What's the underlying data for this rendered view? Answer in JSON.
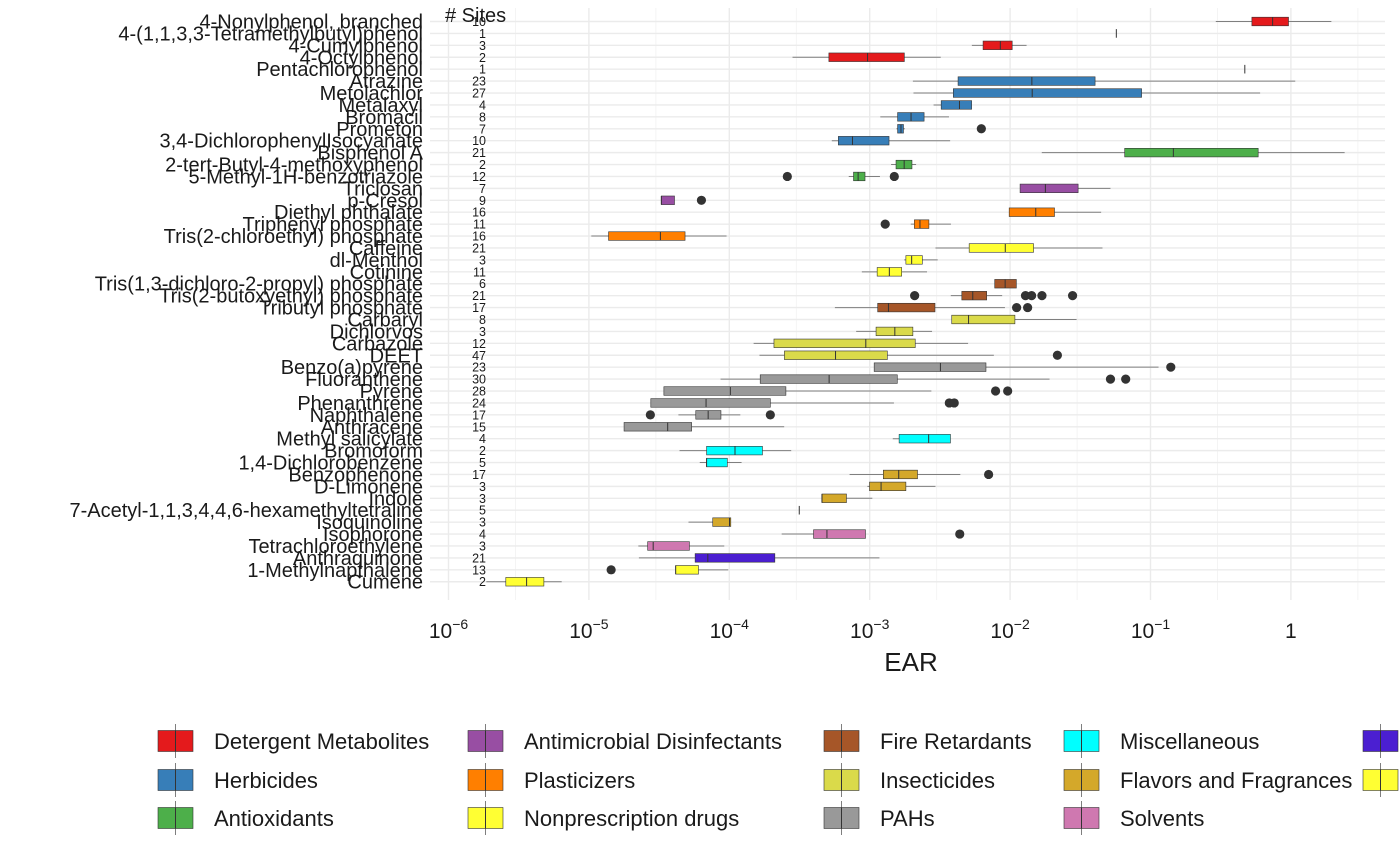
{
  "chart_data": {
    "type": "boxplot",
    "orientation": "horizontal",
    "xlabel": "EAR",
    "ylabel": "",
    "sites_header": "# Sites",
    "x_scale": "log10",
    "xlim": [
      6e-07,
      5
    ],
    "x_ticks": [
      {
        "value": 1e-06,
        "base": "10",
        "exp": "−6"
      },
      {
        "value": 1e-05,
        "base": "10",
        "exp": "−5"
      },
      {
        "value": 0.0001,
        "base": "10",
        "exp": "−4"
      },
      {
        "value": 0.001,
        "base": "10",
        "exp": "−3"
      },
      {
        "value": 0.01,
        "base": "10",
        "exp": "−2"
      },
      {
        "value": 0.1,
        "base": "10",
        "exp": "−1"
      },
      {
        "value": 1,
        "base": "1",
        "exp": ""
      }
    ],
    "grid": true,
    "legend_position": "bottom",
    "classes": [
      {
        "name": "Detergent Metabolites",
        "color": "#E41A1C"
      },
      {
        "name": "Antimicrobial Disinfectants",
        "color": "#984EA3"
      },
      {
        "name": "Fire Retardants",
        "color": "#A65628"
      },
      {
        "name": "Miscellaneous",
        "color": "#00FFFF"
      },
      {
        "name": "",
        "color": "#4B1FD1"
      },
      {
        "name": "Herbicides",
        "color": "#377EB8"
      },
      {
        "name": "Plasticizers",
        "color": "#FF7F00"
      },
      {
        "name": "Insecticides",
        "color": "#DADA4A"
      },
      {
        "name": "Flavors and Fragrances",
        "color": "#D4A82A"
      },
      {
        "name": "",
        "color": "#FFFF33"
      },
      {
        "name": "Antioxidants",
        "color": "#4DAF4A"
      },
      {
        "name": "Nonprescription drugs",
        "color": "#FFFF33"
      },
      {
        "name": "PAHs",
        "color": "#999999"
      },
      {
        "name": "Solvents",
        "color": "#CF78B0"
      }
    ],
    "chemicals": [
      {
        "name": "4-Nonylphenol, branched",
        "sites": "10",
        "color": "#E41A1C",
        "min": 0.2918,
        "q1": 0.5275,
        "median": 0.7409,
        "q3": 0.9616,
        "max": 1.942,
        "outliers": []
      },
      {
        "name": "4-(1,1,3,3-Tetramethylbutyl)phenol",
        "sites": "1",
        "color": "#E41A1C",
        "min": 0.0571,
        "q1": 0.0571,
        "median": 0.0571,
        "q3": 0.0571,
        "max": 0.0571,
        "outliers": []
      },
      {
        "name": "4-Cumylphenol",
        "sites": "3",
        "color": "#E41A1C",
        "min": 0.00534,
        "q1": 0.00642,
        "median": 0.00852,
        "q3": 0.01035,
        "max": 0.0131,
        "outliers": []
      },
      {
        "name": "4-Octylphenol",
        "sites": "2",
        "color": "#E41A1C",
        "min": 0.000282,
        "q1": 0.000512,
        "median": 0.000965,
        "q3": 0.001765,
        "max": 0.003205,
        "outliers": []
      },
      {
        "name": "Pentachlorophenol",
        "sites": "1",
        "color": "#E41A1C",
        "min": 0.4696,
        "q1": 0.4696,
        "median": 0.4696,
        "q3": 0.4696,
        "max": 0.4696,
        "outliers": []
      },
      {
        "name": "Atrazine",
        "sites": "23",
        "color": "#377EB8",
        "min": 0.00203,
        "q1": 0.00426,
        "median": 0.01429,
        "q3": 0.0403,
        "max": 1.074,
        "outliers": []
      },
      {
        "name": "Metolachlor",
        "sites": "27",
        "color": "#377EB8",
        "min": 0.00205,
        "q1": 0.00394,
        "median": 0.01437,
        "q3": 0.0864,
        "max": 0.6037,
        "outliers": []
      },
      {
        "name": "Metalaxyl",
        "sites": "4",
        "color": "#377EB8",
        "min": 0.00285,
        "q1": 0.00323,
        "median": 0.00436,
        "q3": 0.00532,
        "max": 0.00532,
        "outliers": []
      },
      {
        "name": "Bromacil",
        "sites": "8",
        "color": "#377EB8",
        "min": 0.00119,
        "q1": 0.00158,
        "median": 0.00197,
        "q3": 0.00244,
        "max": 0.00367,
        "outliers": []
      },
      {
        "name": "Prometon",
        "sites": "7",
        "color": "#377EB8",
        "min": 0.00155,
        "q1": 0.00158,
        "median": 0.00167,
        "q3": 0.00174,
        "max": 0.00178,
        "outliers": [
          0.00624
        ]
      },
      {
        "name": "3,4-DichlorophenylIsocyanate",
        "sites": "10",
        "color": "#377EB8",
        "min": 0.000537,
        "q1": 0.000598,
        "median": 0.000754,
        "q3": 0.001373,
        "max": 0.00374,
        "outliers": []
      },
      {
        "name": "Bisphenol A",
        "sites": "21",
        "color": "#4DAF4A",
        "min": 0.01681,
        "q1": 0.0655,
        "median": 0.1455,
        "q3": 0.5847,
        "max": 2.414,
        "outliers": []
      },
      {
        "name": "2-tert-Butyl-4-methoxyphenol",
        "sites": "2",
        "color": "#4DAF4A",
        "min": 0.00142,
        "q1": 0.00154,
        "median": 0.00176,
        "q3": 0.002,
        "max": 0.00214,
        "outliers": []
      },
      {
        "name": "5-Methyl-1H-benzotriazole",
        "sites": "12",
        "color": "#4DAF4A",
        "min": 0.000709,
        "q1": 0.000767,
        "median": 0.000827,
        "q3": 0.000926,
        "max": 0.001183,
        "outliers": [
          0.000259,
          0.001497
        ]
      },
      {
        "name": "Triclosan",
        "sites": "7",
        "color": "#984EA3",
        "min": 0.01178,
        "q1": 0.01178,
        "median": 0.01784,
        "q3": 0.03051,
        "max": 0.05187,
        "outliers": []
      },
      {
        "name": "p-Cresol",
        "sites": "9",
        "color": "#984EA3",
        "min": 3.28e-05,
        "q1": 3.28e-05,
        "median": 3.28e-05,
        "q3": 4.07e-05,
        "max": 4.07e-05,
        "outliers": [
          6.33e-05
        ]
      },
      {
        "name": "Diethyl phthalate",
        "sites": "16",
        "color": "#FF7F00",
        "min": 0.00985,
        "q1": 0.00985,
        "median": 0.01523,
        "q3": 0.02071,
        "max": 0.0445,
        "outliers": []
      },
      {
        "name": "Triphenyl phosphate",
        "sites": "11",
        "color": "#FF7F00",
        "min": 0.00196,
        "q1": 0.00208,
        "median": 0.00228,
        "q3": 0.00264,
        "max": 0.00379,
        "outliers": [
          0.00129
        ]
      },
      {
        "name": "Tris(2-chloroethyl) phosphate",
        "sites": "16",
        "color": "#FF7F00",
        "min": 1.04e-05,
        "q1": 1.38e-05,
        "median": 3.23e-05,
        "q3": 4.84e-05,
        "max": 9.56e-05,
        "outliers": []
      },
      {
        "name": "Caffeine",
        "sites": "21",
        "color": "#FFFF33",
        "min": 0.00294,
        "q1": 0.00511,
        "median": 0.00924,
        "q3": 0.01469,
        "max": 0.0455,
        "outliers": []
      },
      {
        "name": "dl-Menthol",
        "sites": "3",
        "color": "#FFFF33",
        "min": 0.00176,
        "q1": 0.00181,
        "median": 0.00199,
        "q3": 0.00237,
        "max": 0.00305,
        "outliers": []
      },
      {
        "name": "Cotinine",
        "sites": "11",
        "color": "#FFFF33",
        "min": 0.000879,
        "q1": 0.00113,
        "median": 0.00138,
        "q3": 0.00169,
        "max": 0.00256,
        "outliers": []
      },
      {
        "name": "Tris(1,3-dichloro-2-propyl) phosphate",
        "sites": "6",
        "color": "#A65628",
        "min": 0.00777,
        "q1": 0.00777,
        "median": 0.00922,
        "q3": 0.01108,
        "max": 0.01108,
        "outliers": []
      },
      {
        "name": "Tris(2-butoxyethyl) phosphate",
        "sites": "21",
        "color": "#A65628",
        "min": 0.00378,
        "q1": 0.00453,
        "median": 0.00542,
        "q3": 0.00681,
        "max": 0.00878,
        "outliers": [
          0.00209,
          0.01287,
          0.01423,
          0.01686,
          0.02786
        ]
      },
      {
        "name": "Tributyl phosphate",
        "sites": "17",
        "color": "#A65628",
        "min": 0.000565,
        "q1": 0.00114,
        "median": 0.00136,
        "q3": 0.002917,
        "max": 0.00919,
        "outliers": [
          0.01113,
          0.01333
        ]
      },
      {
        "name": "Carbaryl",
        "sites": "8",
        "color": "#DADA4A",
        "min": 0.00384,
        "q1": 0.00384,
        "median": 0.00506,
        "q3": 0.01082,
        "max": 0.02975,
        "outliers": []
      },
      {
        "name": "Dichlorvos",
        "sites": "3",
        "color": "#DADA4A",
        "min": 0.000801,
        "q1": 0.00111,
        "median": 0.00151,
        "q3": 0.00203,
        "max": 0.00278,
        "outliers": []
      },
      {
        "name": "Carbazole",
        "sites": "12",
        "color": "#DADA4A",
        "min": 0.000149,
        "q1": 0.000208,
        "median": 0.000938,
        "q3": 0.00211,
        "max": 0.00502,
        "outliers": []
      },
      {
        "name": "DEET",
        "sites": "47",
        "color": "#DADA4A",
        "min": 0.000164,
        "q1": 0.000247,
        "median": 0.000571,
        "q3": 0.001335,
        "max": 0.00766,
        "outliers": [
          0.02172
        ]
      },
      {
        "name": "Benzo(a)pyrene",
        "sites": "23",
        "color": "#999999",
        "min": 0.001076,
        "q1": 0.001076,
        "median": 0.003189,
        "q3": 0.006731,
        "max": 0.1141,
        "outliers": [
          0.1395
        ]
      },
      {
        "name": "Fluoranthene",
        "sites": "30",
        "color": "#999999",
        "min": 8.66e-05,
        "q1": 0.000166,
        "median": 0.000514,
        "q3": 0.001572,
        "max": 0.0191,
        "outliers": [
          0.05187,
          0.06659
        ]
      },
      {
        "name": "Pyrene",
        "sites": "28",
        "color": "#999999",
        "min": 3.42e-05,
        "q1": 3.42e-05,
        "median": 0.0001017,
        "q3": 0.000253,
        "max": 0.00275,
        "outliers": [
          0.00788,
          0.00961
        ]
      },
      {
        "name": "Phenanthrene",
        "sites": "24",
        "color": "#999999",
        "min": 2.76e-05,
        "q1": 2.76e-05,
        "median": 6.83e-05,
        "q3": 0.000196,
        "max": 0.001488,
        "outliers": [
          0.00369,
          0.004
        ]
      },
      {
        "name": "Naphthalene",
        "sites": "17",
        "color": "#999999",
        "min": 4.34e-05,
        "q1": 5.77e-05,
        "median": 7.07e-05,
        "q3": 8.72e-05,
        "max": 0.0001198,
        "outliers": [
          2.74e-05,
          0.000196
        ]
      },
      {
        "name": "Anthracene",
        "sites": "15",
        "color": "#999999",
        "min": 1.78e-05,
        "q1": 1.78e-05,
        "median": 3.64e-05,
        "q3": 5.39e-05,
        "max": 0.000246,
        "outliers": []
      },
      {
        "name": "Methyl salicylate",
        "sites": "4",
        "color": "#00FFFF",
        "min": 0.00146,
        "q1": 0.00162,
        "median": 0.00263,
        "q3": 0.00376,
        "max": 0.00376,
        "outliers": []
      },
      {
        "name": "Bromoform",
        "sites": "2",
        "color": "#00FFFF",
        "min": 4.42e-05,
        "q1": 6.89e-05,
        "median": 0.0001098,
        "q3": 0.0001722,
        "max": 0.000276,
        "outliers": []
      },
      {
        "name": "1,4-Dichlorobenzene",
        "sites": "5",
        "color": "#00FFFF",
        "min": 6.16e-05,
        "q1": 6.89e-05,
        "median": 6.89e-05,
        "q3": 9.68e-05,
        "max": 0.0001223,
        "outliers": []
      },
      {
        "name": "Benzophenone",
        "sites": "17",
        "color": "#D4A82A",
        "min": 0.000719,
        "q1": 0.00125,
        "median": 0.00161,
        "q3": 0.00219,
        "max": 0.00442,
        "outliers": [
          0.00703
        ]
      },
      {
        "name": "D-Limonene",
        "sites": "3",
        "color": "#D4A82A",
        "min": 0.000963,
        "q1": 0.000997,
        "median": 0.001205,
        "q3": 0.00181,
        "max": 0.00294,
        "outliers": []
      },
      {
        "name": "Indole",
        "sites": "3",
        "color": "#D4A82A",
        "min": 0.000457,
        "q1": 0.000457,
        "median": 0.000457,
        "q3": 0.000683,
        "max": 0.001044,
        "outliers": []
      },
      {
        "name": "7-Acetyl-1,1,3,4,4,6-hexamethyltetraline",
        "sites": "5",
        "color": "#D4A82A",
        "min": 0.000315,
        "q1": 0.000315,
        "median": 0.000315,
        "q3": 0.000315,
        "max": 0.000315,
        "outliers": []
      },
      {
        "name": "Isoquinoline",
        "sites": "3",
        "color": "#D4A82A",
        "min": 5.12e-05,
        "q1": 7.62e-05,
        "median": 0.0001003,
        "q3": 0.0001025,
        "max": 0.0001025,
        "outliers": []
      },
      {
        "name": "Isophorone",
        "sites": "4",
        "color": "#CF78B0",
        "min": 0.000236,
        "q1": 0.000398,
        "median": 0.000496,
        "q3": 0.000933,
        "max": 0.000933,
        "outliers": [
          0.00438
        ]
      },
      {
        "name": "Tetrachloroethylene",
        "sites": "3",
        "color": "#CF78B0",
        "min": 2.25e-05,
        "q1": 2.62e-05,
        "median": 2.87e-05,
        "q3": 5.2e-05,
        "max": 9.21e-05,
        "outliers": []
      },
      {
        "name": "Anthraquinone",
        "sites": "21",
        "color": "#4B1FD1",
        "min": 2.27e-05,
        "q1": 5.71e-05,
        "median": 7.03e-05,
        "q3": 0.000211,
        "max": 0.001173,
        "outliers": []
      },
      {
        "name": "1-Methylnapthalene",
        "sites": "13",
        "color": "#FFFF33",
        "min": 4.15e-05,
        "q1": 4.15e-05,
        "median": 4.15e-05,
        "q3": 6.03e-05,
        "max": 9.83e-05,
        "outliers": [
          1.44e-05
        ]
      },
      {
        "name": "Cumene",
        "sites": "2",
        "color": "#FFFF33",
        "min": 1.86e-06,
        "q1": 2.56e-06,
        "median": 3.6e-06,
        "q3": 4.78e-06,
        "max": 6.4e-06,
        "outliers": []
      }
    ]
  }
}
